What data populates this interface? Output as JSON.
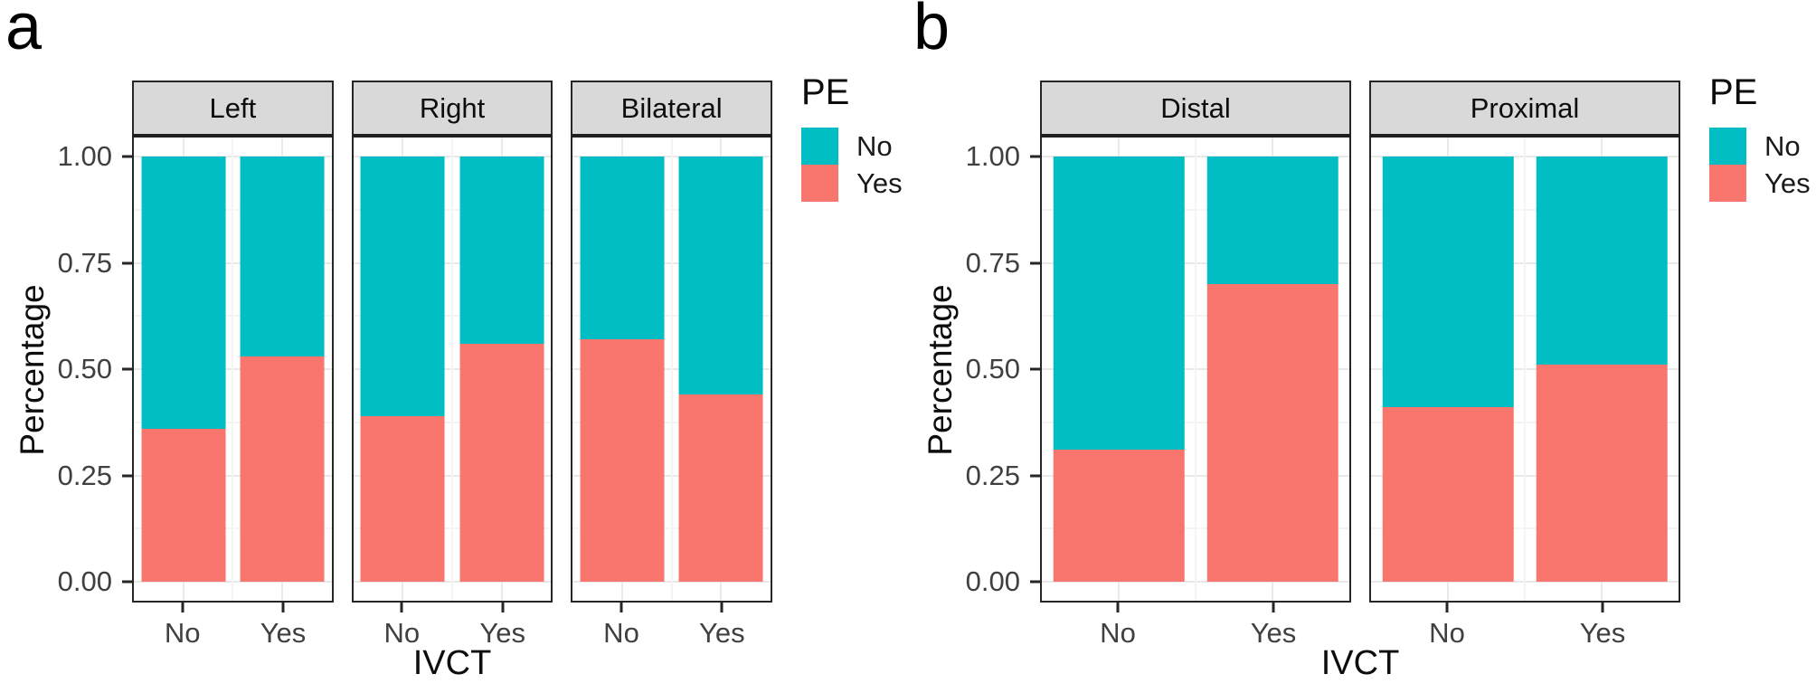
{
  "figure": {
    "palette": {
      "pe_no_teal": "#00BEC4",
      "pe_yes_red": "#F8766D",
      "strip_background": "#D9D9D9"
    }
  },
  "chart_data": [
    {
      "type": "bar",
      "subtype": "stacked-percentage",
      "panel_label": "a",
      "xlabel": "IVCT",
      "ylabel": "Percentage",
      "ylim": [
        0,
        1
      ],
      "categories": [
        "No",
        "Yes"
      ],
      "yticks": [
        {
          "label": "1.00",
          "value": 1.0
        },
        {
          "label": "0.75",
          "value": 0.75
        },
        {
          "label": "0.50",
          "value": 0.5
        },
        {
          "label": "0.25",
          "value": 0.25
        },
        {
          "label": "0.00",
          "value": 0.0
        }
      ],
      "legend": {
        "title": "PE",
        "position": "right",
        "entries": [
          {
            "label": "No",
            "color": "#00BEC4"
          },
          {
            "label": "Yes",
            "color": "#F8766D"
          }
        ]
      },
      "stack_bottom_to_top": [
        "Yes",
        "No"
      ],
      "facets": [
        {
          "label": "Left",
          "bars": [
            {
              "category": "No",
              "segments": {
                "Yes": 0.36,
                "No": 0.64
              }
            },
            {
              "category": "Yes",
              "segments": {
                "Yes": 0.53,
                "No": 0.47
              }
            }
          ]
        },
        {
          "label": "Right",
          "bars": [
            {
              "category": "No",
              "segments": {
                "Yes": 0.39,
                "No": 0.61
              }
            },
            {
              "category": "Yes",
              "segments": {
                "Yes": 0.56,
                "No": 0.44
              }
            }
          ]
        },
        {
          "label": "Bilateral",
          "bars": [
            {
              "category": "No",
              "segments": {
                "Yes": 0.57,
                "No": 0.43
              }
            },
            {
              "category": "Yes",
              "segments": {
                "Yes": 0.44,
                "No": 0.56
              }
            }
          ]
        }
      ]
    },
    {
      "type": "bar",
      "subtype": "stacked-percentage",
      "panel_label": "b",
      "xlabel": "IVCT",
      "ylabel": "Percentage",
      "ylim": [
        0,
        1
      ],
      "categories": [
        "No",
        "Yes"
      ],
      "yticks": [
        {
          "label": "1.00",
          "value": 1.0
        },
        {
          "label": "0.75",
          "value": 0.75
        },
        {
          "label": "0.50",
          "value": 0.5
        },
        {
          "label": "0.25",
          "value": 0.25
        },
        {
          "label": "0.00",
          "value": 0.0
        }
      ],
      "legend": {
        "title": "PE",
        "position": "right",
        "entries": [
          {
            "label": "No",
            "color": "#00BEC4"
          },
          {
            "label": "Yes",
            "color": "#F8766D"
          }
        ]
      },
      "stack_bottom_to_top": [
        "Yes",
        "No"
      ],
      "facets": [
        {
          "label": "Distal",
          "bars": [
            {
              "category": "No",
              "segments": {
                "Yes": 0.31,
                "No": 0.69
              }
            },
            {
              "category": "Yes",
              "segments": {
                "Yes": 0.7,
                "No": 0.3
              }
            }
          ]
        },
        {
          "label": "Proximal",
          "bars": [
            {
              "category": "No",
              "segments": {
                "Yes": 0.41,
                "No": 0.59
              }
            },
            {
              "category": "Yes",
              "segments": {
                "Yes": 0.51,
                "No": 0.49
              }
            }
          ]
        }
      ]
    }
  ]
}
